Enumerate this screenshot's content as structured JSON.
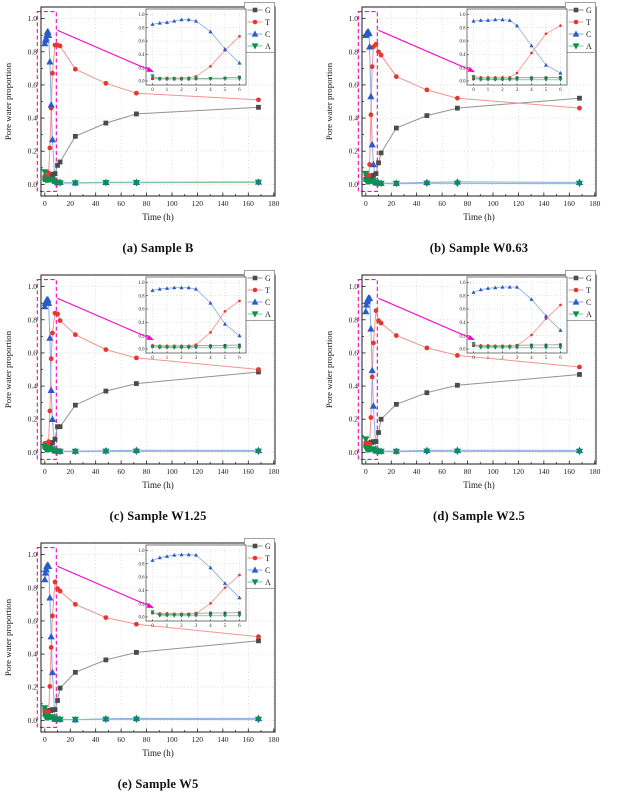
{
  "style": {
    "background": "#ffffff",
    "axis_color": "#1a1a1a",
    "grid_color": "#cbcbcb",
    "tick_label_color": "#1a1a1a",
    "legend_border_color": "#8a8a8a",
    "callout_accent": "#ff00cc"
  },
  "chart_data": [
    {
      "type": "line",
      "caption": "(a) Sample B",
      "xlabel": "Time (h)",
      "ylabel": "Pore water proportion",
      "xlim": [
        -3,
        181
      ],
      "ylim": [
        -0.07,
        1.07
      ],
      "xticks": [
        0,
        20,
        40,
        60,
        80,
        100,
        120,
        140,
        160,
        180
      ],
      "yticks": [
        0,
        0.2,
        0.4,
        0.6,
        0.8,
        1
      ],
      "x": [
        0,
        0.5,
        1,
        1.5,
        2,
        2.5,
        3,
        4,
        5,
        6,
        8,
        10,
        12,
        24,
        48,
        72,
        168
      ],
      "inset": {
        "xticks": [
          0,
          1,
          2,
          3,
          4,
          5,
          6
        ],
        "yticks": [
          0,
          0.2,
          0.4,
          0.6,
          0.8,
          1
        ],
        "xmax": 6
      },
      "series": [
        {
          "name": "G",
          "marker": "square",
          "color": "#4b4b4b",
          "line_color": "#929292",
          "values": [
            0.035,
            0.03,
            0.03,
            0.03,
            0.03,
            0.03,
            0.035,
            0.04,
            0.045,
            0.06,
            0.065,
            0.115,
            0.135,
            0.29,
            0.37,
            0.425,
            0.465
          ]
        },
        {
          "name": "T",
          "marker": "circle",
          "color": "#e53731",
          "line_color": "#f2948f",
          "values": [
            0.05,
            0.045,
            0.045,
            0.045,
            0.045,
            0.05,
            0.07,
            0.22,
            0.46,
            0.67,
            0.84,
            0.84,
            0.835,
            0.695,
            0.61,
            0.55,
            0.51
          ]
        },
        {
          "name": "C",
          "marker": "triangle-up",
          "color": "#2b5bc7",
          "line_color": "#87abe2",
          "values": [
            0.85,
            0.87,
            0.88,
            0.9,
            0.92,
            0.92,
            0.9,
            0.74,
            0.48,
            0.27,
            0.02,
            0.015,
            0.013,
            0.01,
            0.013,
            0.013,
            0.015
          ]
        },
        {
          "name": "A",
          "marker": "triangle-down",
          "color": "#0a9150",
          "line_color": "#7ecaa6",
          "values": [
            0.075,
            0.03,
            0.03,
            0.03,
            0.03,
            0.03,
            0.03,
            0.03,
            0.03,
            0.03,
            0.012,
            0.01,
            0.008,
            0.008,
            0.01,
            0.01,
            0.012
          ]
        }
      ]
    },
    {
      "type": "line",
      "caption": "(b) Sample W0.63",
      "xlabel": "Time (h)",
      "ylabel": "Pore water proportion",
      "xlim": [
        -3,
        181
      ],
      "ylim": [
        -0.07,
        1.07
      ],
      "xticks": [
        0,
        20,
        40,
        60,
        80,
        100,
        120,
        140,
        160,
        180
      ],
      "yticks": [
        0,
        0.2,
        0.4,
        0.6,
        0.8,
        1
      ],
      "x": [
        0,
        0.5,
        1,
        1.5,
        2,
        2.5,
        3,
        4,
        5,
        6,
        8,
        10,
        12,
        24,
        48,
        72,
        168
      ],
      "inset": {
        "xticks": [
          0,
          1,
          2,
          3,
          4,
          5,
          6
        ],
        "yticks": [
          0,
          0.2,
          0.4,
          0.6,
          0.8,
          1
        ],
        "xmax": 6
      },
      "series": [
        {
          "name": "G",
          "marker": "square",
          "color": "#4b4b4b",
          "line_color": "#929292",
          "values": [
            0.03,
            0.03,
            0.03,
            0.03,
            0.03,
            0.03,
            0.05,
            0.05,
            0.05,
            0.055,
            0.065,
            0.13,
            0.19,
            0.34,
            0.415,
            0.46,
            0.52
          ]
        },
        {
          "name": "T",
          "marker": "circle",
          "color": "#e53731",
          "line_color": "#f2948f",
          "values": [
            0.06,
            0.055,
            0.055,
            0.055,
            0.055,
            0.055,
            0.12,
            0.42,
            0.71,
            0.83,
            0.845,
            0.8,
            0.78,
            0.65,
            0.57,
            0.52,
            0.46
          ]
        },
        {
          "name": "C",
          "marker": "triangle-up",
          "color": "#2b5bc7",
          "line_color": "#87abe2",
          "values": [
            0.9,
            0.91,
            0.91,
            0.92,
            0.92,
            0.91,
            0.83,
            0.53,
            0.24,
            0.12,
            0.01,
            0.01,
            0.008,
            0.008,
            0.012,
            0.015,
            0.012
          ]
        },
        {
          "name": "A",
          "marker": "triangle-down",
          "color": "#0a9150",
          "line_color": "#7ecaa6",
          "values": [
            0.065,
            0.02,
            0.02,
            0.02,
            0.02,
            0.02,
            0.02,
            0.02,
            0.02,
            0.02,
            0.008,
            0.006,
            0.005,
            0.005,
            0.006,
            0.006,
            0.005
          ]
        }
      ]
    },
    {
      "type": "line",
      "caption": "(c) Sample W1.25",
      "xlabel": "Time (h)",
      "ylabel": "Pore water proportion",
      "xlim": [
        -3,
        181
      ],
      "ylim": [
        -0.07,
        1.07
      ],
      "xticks": [
        0,
        20,
        40,
        60,
        80,
        100,
        120,
        140,
        160,
        180
      ],
      "yticks": [
        0,
        0.2,
        0.4,
        0.6,
        0.8,
        1
      ],
      "x": [
        0,
        0.5,
        1,
        1.5,
        2,
        2.5,
        3,
        4,
        5,
        6,
        8,
        10,
        12,
        24,
        48,
        72,
        168
      ],
      "inset": {
        "xticks": [
          0,
          1,
          2,
          3,
          4,
          5,
          6
        ],
        "yticks": [
          0,
          0.2,
          0.4,
          0.6,
          0.8,
          1
        ],
        "xmax": 6
      },
      "series": [
        {
          "name": "G",
          "marker": "square",
          "color": "#4b4b4b",
          "line_color": "#929292",
          "values": [
            0.035,
            0.03,
            0.03,
            0.03,
            0.03,
            0.03,
            0.05,
            0.05,
            0.055,
            0.06,
            0.08,
            0.155,
            0.155,
            0.285,
            0.37,
            0.415,
            0.485
          ]
        },
        {
          "name": "T",
          "marker": "circle",
          "color": "#e53731",
          "line_color": "#f2948f",
          "values": [
            0.055,
            0.05,
            0.05,
            0.05,
            0.05,
            0.05,
            0.065,
            0.25,
            0.565,
            0.72,
            0.84,
            0.835,
            0.795,
            0.71,
            0.62,
            0.57,
            0.5
          ]
        },
        {
          "name": "C",
          "marker": "triangle-up",
          "color": "#2b5bc7",
          "line_color": "#87abe2",
          "values": [
            0.88,
            0.9,
            0.91,
            0.92,
            0.92,
            0.92,
            0.9,
            0.69,
            0.375,
            0.2,
            0.01,
            0.01,
            0.008,
            0.008,
            0.01,
            0.013,
            0.012
          ]
        },
        {
          "name": "A",
          "marker": "triangle-down",
          "color": "#0a9150",
          "line_color": "#7ecaa6",
          "values": [
            0.035,
            0.02,
            0.02,
            0.02,
            0.02,
            0.02,
            0.02,
            0.02,
            0.02,
            0.02,
            0.008,
            0.005,
            0.005,
            0.005,
            0.006,
            0.006,
            0.006
          ]
        }
      ]
    },
    {
      "type": "line",
      "caption": "(d) Sample W2.5",
      "xlabel": "Time (h)",
      "ylabel": "Pore water proportion",
      "xlim": [
        -3,
        181
      ],
      "ylim": [
        -0.07,
        1.07
      ],
      "xticks": [
        0,
        20,
        40,
        60,
        80,
        100,
        120,
        140,
        160,
        180
      ],
      "yticks": [
        0,
        0.2,
        0.4,
        0.6,
        0.8,
        1
      ],
      "x": [
        0,
        0.5,
        1,
        1.5,
        2,
        2.5,
        3,
        4,
        5,
        6,
        8,
        10,
        12,
        24,
        48,
        72,
        168
      ],
      "inset": {
        "xticks": [
          0,
          1,
          2,
          3,
          4,
          5,
          6
        ],
        "yticks": [
          0,
          0.2,
          0.4,
          0.6,
          0.8,
          1
        ],
        "xmax": 6
      },
      "series": [
        {
          "name": "G",
          "marker": "square",
          "color": "#4b4b4b",
          "line_color": "#929292",
          "values": [
            0.05,
            0.04,
            0.04,
            0.04,
            0.04,
            0.04,
            0.055,
            0.06,
            0.06,
            0.065,
            0.065,
            0.12,
            0.2,
            0.29,
            0.36,
            0.405,
            0.47
          ]
        },
        {
          "name": "T",
          "marker": "circle",
          "color": "#e53731",
          "line_color": "#f2948f",
          "values": [
            0.06,
            0.055,
            0.055,
            0.05,
            0.05,
            0.05,
            0.05,
            0.21,
            0.455,
            0.66,
            0.855,
            0.795,
            0.78,
            0.705,
            0.63,
            0.585,
            0.515
          ]
        },
        {
          "name": "C",
          "marker": "triangle-up",
          "color": "#2b5bc7",
          "line_color": "#87abe2",
          "values": [
            0.85,
            0.89,
            0.91,
            0.92,
            0.93,
            0.93,
            0.93,
            0.745,
            0.495,
            0.28,
            0.01,
            0.01,
            0.008,
            0.008,
            0.012,
            0.013,
            0.012
          ]
        },
        {
          "name": "A",
          "marker": "triangle-down",
          "color": "#0a9150",
          "line_color": "#7ecaa6",
          "values": [
            0.08,
            0.02,
            0.02,
            0.02,
            0.02,
            0.02,
            0.02,
            0.02,
            0.02,
            0.02,
            0.008,
            0.005,
            0.005,
            0.005,
            0.006,
            0.006,
            0.005
          ]
        }
      ]
    },
    {
      "type": "line",
      "caption": "(e) Sample W5",
      "xlabel": "Time (h)",
      "ylabel": "Pore water proportion",
      "xlim": [
        -3,
        181
      ],
      "ylim": [
        -0.07,
        1.07
      ],
      "xticks": [
        0,
        20,
        40,
        60,
        80,
        100,
        120,
        140,
        160,
        180
      ],
      "yticks": [
        0,
        0.2,
        0.4,
        0.6,
        0.8,
        1
      ],
      "x": [
        0,
        0.5,
        1,
        1.5,
        2,
        2.5,
        3,
        4,
        5,
        6,
        8,
        10,
        12,
        24,
        48,
        72,
        168
      ],
      "inset": {
        "xticks": [
          0,
          1,
          2,
          3,
          4,
          5,
          6
        ],
        "yticks": [
          0,
          0.2,
          0.4,
          0.6,
          0.8,
          1
        ],
        "xmax": 6
      },
      "series": [
        {
          "name": "G",
          "marker": "square",
          "color": "#4b4b4b",
          "line_color": "#929292",
          "values": [
            0.06,
            0.04,
            0.04,
            0.04,
            0.04,
            0.04,
            0.055,
            0.06,
            0.06,
            0.065,
            0.065,
            0.12,
            0.195,
            0.29,
            0.365,
            0.41,
            0.48
          ]
        },
        {
          "name": "T",
          "marker": "circle",
          "color": "#e53731",
          "line_color": "#f2948f",
          "values": [
            0.06,
            0.055,
            0.055,
            0.05,
            0.05,
            0.05,
            0.05,
            0.205,
            0.44,
            0.63,
            0.835,
            0.795,
            0.78,
            0.7,
            0.62,
            0.58,
            0.505
          ]
        },
        {
          "name": "C",
          "marker": "triangle-up",
          "color": "#2b5bc7",
          "line_color": "#87abe2",
          "values": [
            0.85,
            0.89,
            0.91,
            0.93,
            0.935,
            0.935,
            0.93,
            0.74,
            0.505,
            0.29,
            0.008,
            0.01,
            0.008,
            0.005,
            0.01,
            0.012,
            0.012
          ]
        },
        {
          "name": "A",
          "marker": "triangle-down",
          "color": "#0a9150",
          "line_color": "#7ecaa6",
          "values": [
            0.075,
            0.02,
            0.02,
            0.02,
            0.02,
            0.02,
            0.02,
            0.02,
            0.02,
            0.02,
            0.008,
            0.005,
            0.005,
            0.005,
            0.006,
            0.006,
            0.005
          ]
        }
      ]
    }
  ]
}
